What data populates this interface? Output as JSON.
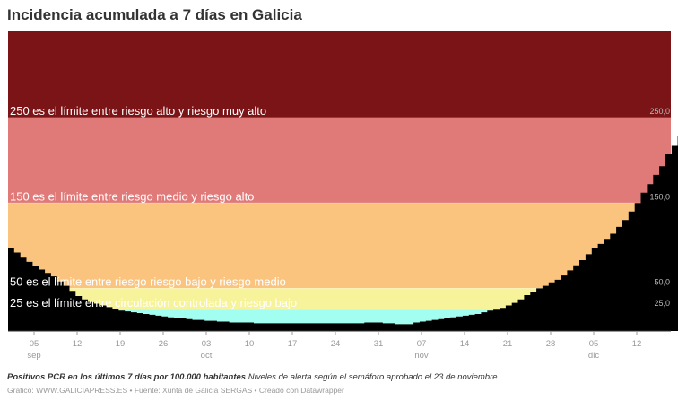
{
  "header": {
    "title": "Incidencia acumulada a 7 días en Galicia"
  },
  "footer": {
    "description_bold": "Positivos PCR en los últimos 7 días por 100.000 habitantes",
    "description_rest": "Niveles de alerta según el semáforo aprobado el 23 de noviembre",
    "credits": "Gráfico: WWW.GALICIAPRESS.ES • Fuente: Xunta de Galicia SERGAS • Creado con Datawrapper"
  },
  "colors": {
    "very_high": "#7b1416",
    "high": "#e07a79",
    "medium": "#fac47f",
    "low": "#f7f39a",
    "controlled": "#a2fef0",
    "series": "#000000",
    "axis_text": "#999999"
  },
  "chart_data": {
    "type": "area",
    "title": "Incidencia acumulada a 7 días en Galicia",
    "xlabel": "",
    "ylabel": "Positivos PCR en los últimos 7 días por 100.000 habitantes",
    "ylim": [
      0,
      351
    ],
    "grid": false,
    "x_start": "2020-08-31",
    "x_end": "2020-12-14",
    "x_ticks": [
      {
        "day": "05",
        "month": "sep"
      },
      {
        "day": "12",
        "month": ""
      },
      {
        "day": "19",
        "month": ""
      },
      {
        "day": "26",
        "month": ""
      },
      {
        "day": "03",
        "month": "oct"
      },
      {
        "day": "10",
        "month": ""
      },
      {
        "day": "17",
        "month": ""
      },
      {
        "day": "24",
        "month": ""
      },
      {
        "day": "31",
        "month": ""
      },
      {
        "day": "07",
        "month": "nov"
      },
      {
        "day": "14",
        "month": ""
      },
      {
        "day": "21",
        "month": ""
      },
      {
        "day": "28",
        "month": ""
      },
      {
        "day": "05",
        "month": "dic"
      },
      {
        "day": "12",
        "month": ""
      }
    ],
    "y_threshold_labels": [
      "250,0",
      "150,0",
      "50,0",
      "25,0"
    ],
    "bands": [
      {
        "from": 250,
        "to": 351,
        "color": "#7b1416",
        "label": "",
        "name": "muy alto"
      },
      {
        "from": 150,
        "to": 250,
        "color": "#e07a79",
        "label": "250 es el límite entre riesgo alto y riesgo muy alto",
        "name": "alto"
      },
      {
        "from": 50,
        "to": 150,
        "color": "#fac47f",
        "label": "150 es el límite entre riesgo medio y riesgo alto",
        "name": "medio"
      },
      {
        "from": 25,
        "to": 50,
        "color": "#f7f39a",
        "label": "50 es el límite entre riesgo riesgo bajo y riesgo medio",
        "name": "bajo"
      },
      {
        "from": 0,
        "to": 25,
        "color": "#a2fef0",
        "label": "25 es el límite entre circulación controlada y riesgo bajo",
        "name": "circulación controlada"
      }
    ],
    "series": [
      {
        "name": "Incidencia acumulada 7 días",
        "values": [
          97,
          92,
          86,
          81,
          76,
          72,
          68,
          64,
          58,
          53,
          47,
          41,
          37,
          34,
          32,
          30,
          28,
          26,
          24,
          23,
          22,
          21,
          20,
          19,
          18,
          17,
          16,
          15,
          15,
          14,
          13,
          13,
          12,
          12,
          11,
          11,
          10,
          10,
          10,
          10,
          9,
          9,
          9,
          9,
          9,
          9,
          9,
          9,
          9,
          9,
          9,
          9,
          9,
          9,
          9,
          9,
          9,
          9,
          10,
          10,
          10,
          9,
          9,
          8,
          8,
          8,
          10,
          11,
          12,
          13,
          14,
          15,
          16,
          17,
          18,
          19,
          20,
          22,
          24,
          25,
          27,
          30,
          33,
          37,
          42,
          46,
          50,
          53,
          57,
          60,
          65,
          71,
          77,
          83,
          90,
          97,
          102,
          108,
          114,
          122,
          130,
          140,
          150,
          162,
          172,
          183,
          193,
          207,
          217,
          228,
          235,
          240,
          244,
          250
        ]
      }
    ]
  }
}
